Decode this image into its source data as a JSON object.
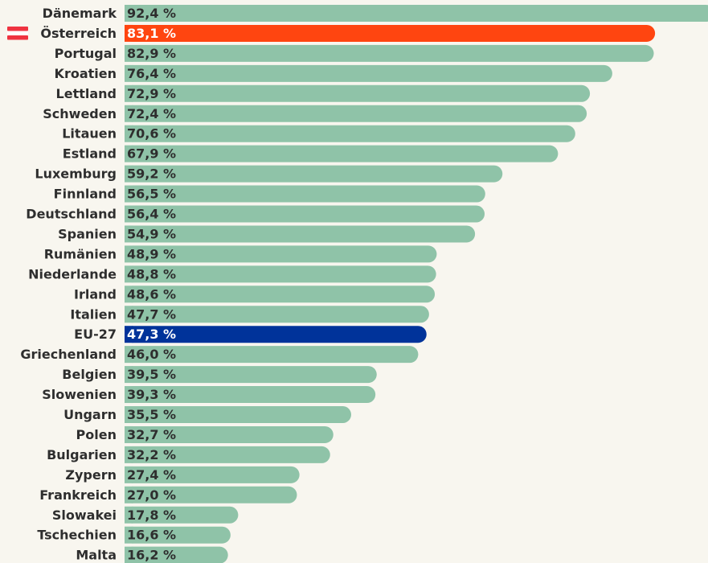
{
  "chart_data": {
    "type": "barh",
    "categories": [
      "Dänemark",
      "Österreich",
      "Portugal",
      "Kroatien",
      "Lettland",
      "Schweden",
      "Litauen",
      "Estland",
      "Luxemburg",
      "Finnland",
      "Deutschland",
      "Spanien",
      "Rumänien",
      "Niederlande",
      "Irland",
      "Italien",
      "EU-27",
      "Griechenland",
      "Belgien",
      "Slowenien",
      "Ungarn",
      "Polen",
      "Bulgarien",
      "Zypern",
      "Frankreich",
      "Slowakei",
      "Tschechien",
      "Malta"
    ],
    "values": [
      92.4,
      83.1,
      82.9,
      76.4,
      72.9,
      72.4,
      70.6,
      67.9,
      59.2,
      56.5,
      56.4,
      54.9,
      48.9,
      48.8,
      48.6,
      47.7,
      47.3,
      46.0,
      39.5,
      39.3,
      35.5,
      32.7,
      32.2,
      27.4,
      27.0,
      17.8,
      16.6,
      16.2
    ],
    "value_labels": [
      "92,4 %",
      "83,1 %",
      "82,9 %",
      "76,4 %",
      "72,9 %",
      "72,4 %",
      "70,6 %",
      "67,9 %",
      "59,2 %",
      "56,5 %",
      "56,4 %",
      "54,9 %",
      "48,9 %",
      "48,8 %",
      "48,6 %",
      "47,7 %",
      "47,3 %",
      "46,0 %",
      "39,5 %",
      "39,3 %",
      "35,5 %",
      "32,7 %",
      "32,2 %",
      "27,4 %",
      "27,0 %",
      "17,8 %",
      "16,6 %",
      "16,2 %"
    ],
    "colors": [
      "#8fc3a8",
      "#ff4510",
      "#8fc3a8",
      "#8fc3a8",
      "#8fc3a8",
      "#8fc3a8",
      "#8fc3a8",
      "#8fc3a8",
      "#8fc3a8",
      "#8fc3a8",
      "#8fc3a8",
      "#8fc3a8",
      "#8fc3a8",
      "#8fc3a8",
      "#8fc3a8",
      "#8fc3a8",
      "#00339a",
      "#8fc3a8",
      "#8fc3a8",
      "#8fc3a8",
      "#8fc3a8",
      "#8fc3a8",
      "#8fc3a8",
      "#8fc3a8",
      "#8fc3a8",
      "#8fc3a8",
      "#8fc3a8",
      "#8fc3a8"
    ]
  }
}
